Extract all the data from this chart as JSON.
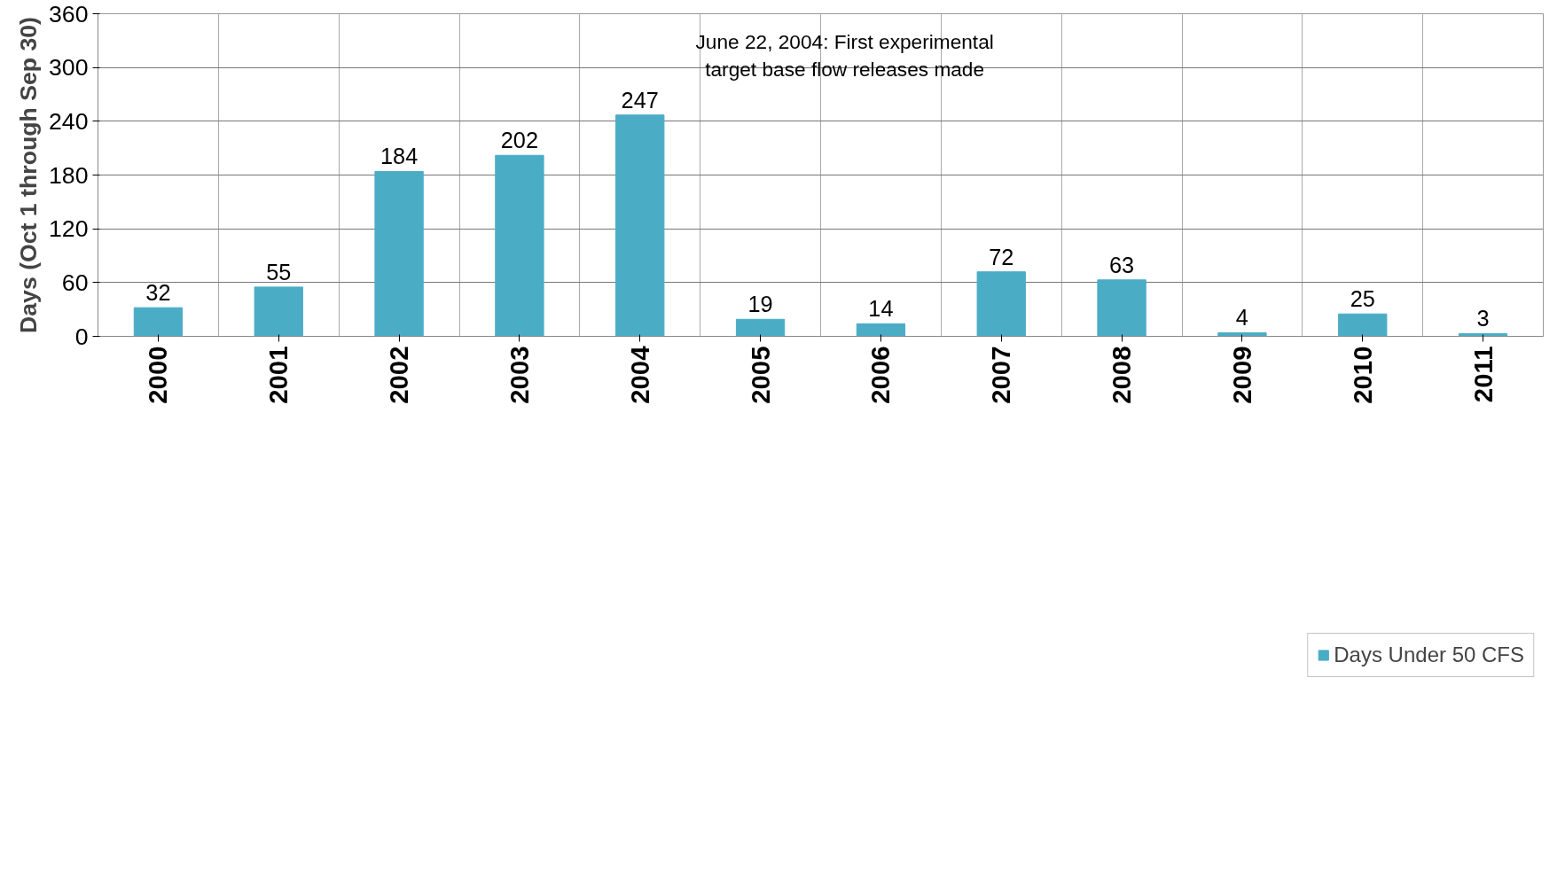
{
  "chart_data": {
    "type": "bar",
    "ylabel": "Days (Oct 1 through Sep 30)",
    "categories": [
      "2000",
      "2001",
      "2002",
      "2003",
      "2004",
      "2005",
      "2006",
      "2007",
      "2008",
      "2009",
      "2010",
      "2011"
    ],
    "series": [
      {
        "name": "Days Under 50 CFS",
        "color": "#4bacc6",
        "values": [
          32,
          55,
          184,
          202,
          247,
          19,
          14,
          72,
          63,
          4,
          25,
          3
        ]
      }
    ],
    "ylim": [
      0,
      360
    ],
    "yticks": [
      0,
      60,
      120,
      180,
      240,
      300,
      360
    ],
    "grid": true,
    "legend": "bottom",
    "data_labels": true,
    "annotations": [
      "June 22, 2004: First experimental\ntarget base flow releases made"
    ]
  }
}
